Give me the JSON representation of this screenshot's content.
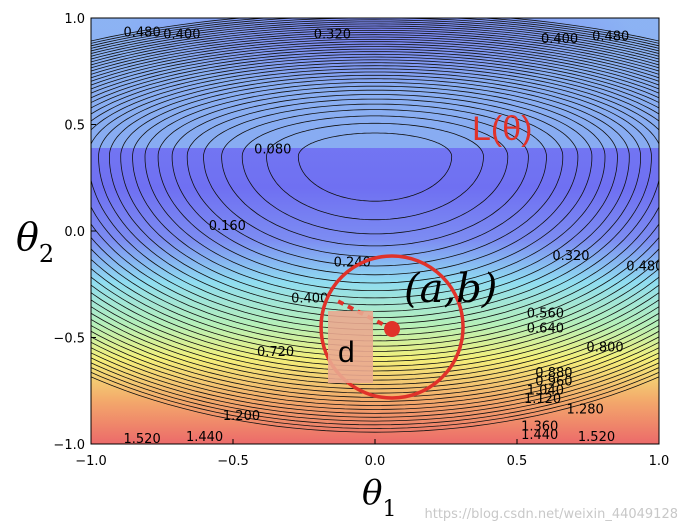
{
  "chart_data": {
    "type": "contour",
    "xlabel": "θ",
    "xlabel_sub": "1",
    "ylabel": "θ",
    "ylabel_sub": "2",
    "xlim": [
      -1.0,
      1.0
    ],
    "ylim": [
      -1.0,
      1.0
    ],
    "x_ticks": [
      "−1.0",
      "−0.5",
      "0.0",
      "0.5",
      "1.0"
    ],
    "y_ticks": [
      "1.0",
      "0.5",
      "0.0",
      "−0.5",
      "−1.0"
    ],
    "x_tick_values": [
      -1.0,
      -0.5,
      0.0,
      0.5,
      1.0
    ],
    "y_tick_values": [
      1.0,
      0.5,
      0.0,
      -0.5,
      -1.0
    ],
    "minimum": {
      "x": 0.0,
      "y": 0.35
    },
    "contour_levels": [
      0.04,
      0.08,
      0.12,
      0.16,
      0.2,
      0.24,
      0.28,
      0.32,
      0.36,
      0.4,
      0.44,
      0.48,
      0.52,
      0.56,
      0.6,
      0.64,
      0.68,
      0.72,
      0.76,
      0.8,
      0.84,
      0.88,
      0.92,
      0.96,
      1.0,
      1.04,
      1.08,
      1.12,
      1.16,
      1.2,
      1.24,
      1.28,
      1.32,
      1.36,
      1.4,
      1.44,
      1.48,
      1.52
    ],
    "contour_labels": [
      {
        "text": "0.480",
        "x": -0.82,
        "y": 0.93
      },
      {
        "text": "0.400",
        "x": -0.68,
        "y": 0.92
      },
      {
        "text": "0.320",
        "x": -0.15,
        "y": 0.92
      },
      {
        "text": "0.400",
        "x": 0.65,
        "y": 0.9
      },
      {
        "text": "0.480",
        "x": 0.83,
        "y": 0.91
      },
      {
        "text": "0.080",
        "x": -0.36,
        "y": 0.38
      },
      {
        "text": "0.160",
        "x": -0.52,
        "y": 0.02
      },
      {
        "text": "0.240",
        "x": -0.08,
        "y": -0.15
      },
      {
        "text": "0.320",
        "x": 0.69,
        "y": -0.12
      },
      {
        "text": "0.480",
        "x": 0.95,
        "y": -0.17
      },
      {
        "text": "0.400",
        "x": -0.23,
        "y": -0.32
      },
      {
        "text": "0.560",
        "x": 0.6,
        "y": -0.39
      },
      {
        "text": "0.640",
        "x": 0.6,
        "y": -0.46
      },
      {
        "text": "0.720",
        "x": -0.35,
        "y": -0.57
      },
      {
        "text": "0.800",
        "x": 0.81,
        "y": -0.55
      },
      {
        "text": "0.880",
        "x": 0.63,
        "y": -0.67
      },
      {
        "text": "0.960",
        "x": 0.63,
        "y": -0.71
      },
      {
        "text": "1.040",
        "x": 0.6,
        "y": -0.75
      },
      {
        "text": "1.120",
        "x": 0.59,
        "y": -0.79
      },
      {
        "text": "1.200",
        "x": -0.47,
        "y": -0.87
      },
      {
        "text": "1.280",
        "x": 0.74,
        "y": -0.84
      },
      {
        "text": "1.360",
        "x": 0.58,
        "y": -0.92
      },
      {
        "text": "1.440",
        "x": 0.58,
        "y": -0.96
      },
      {
        "text": "1.440",
        "x": -0.6,
        "y": -0.97
      },
      {
        "text": "1.520",
        "x": 0.78,
        "y": -0.97
      },
      {
        "text": "1.520",
        "x": -0.82,
        "y": -0.98
      }
    ],
    "annotations": {
      "loss_label": "L(θ)",
      "point_label": "(a,b)",
      "box_label": "d",
      "point": {
        "x": 0.06,
        "y": -0.46
      },
      "circle_radius": 0.25,
      "dashed_to": {
        "x": -0.13,
        "y": -0.33
      }
    },
    "colors": {
      "point": "#e0322a",
      "circle": "#e0322a",
      "box_fill": "#eaa990",
      "loss_label": "#e0322a"
    },
    "grid": false
  },
  "watermark": "https://blog.csdn.net/weixin_44049128"
}
